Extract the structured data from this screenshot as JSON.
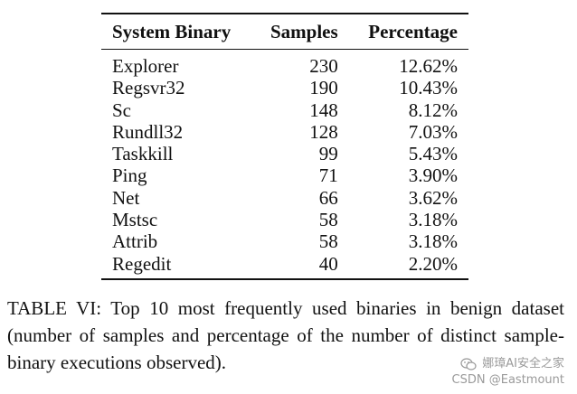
{
  "table": {
    "headers": {
      "binary": "System Binary",
      "samples": "Samples",
      "percentage": "Percentage"
    },
    "rows": [
      {
        "binary": "Explorer",
        "samples": "230",
        "percentage": "12.62%"
      },
      {
        "binary": "Regsvr32",
        "samples": "190",
        "percentage": "10.43%"
      },
      {
        "binary": "Sc",
        "samples": "148",
        "percentage": "8.12%"
      },
      {
        "binary": "Rundll32",
        "samples": "128",
        "percentage": "7.03%"
      },
      {
        "binary": "Taskkill",
        "samples": "99",
        "percentage": "5.43%"
      },
      {
        "binary": "Ping",
        "samples": "71",
        "percentage": "3.90%"
      },
      {
        "binary": "Net",
        "samples": "66",
        "percentage": "3.62%"
      },
      {
        "binary": "Mstsc",
        "samples": "58",
        "percentage": "3.18%"
      },
      {
        "binary": "Attrib",
        "samples": "58",
        "percentage": "3.18%"
      },
      {
        "binary": "Regedit",
        "samples": "40",
        "percentage": "2.20%"
      }
    ]
  },
  "caption": {
    "text": "TABLE VI: Top 10 most frequently used binaries in benign dataset (number of samples and percentage of the number of distinct sample-binary executions observed)."
  },
  "watermark": {
    "line1": "娜璋AI安全之家",
    "line2": "CSDN @Eastmount",
    "icon": "wechat-icon"
  }
}
